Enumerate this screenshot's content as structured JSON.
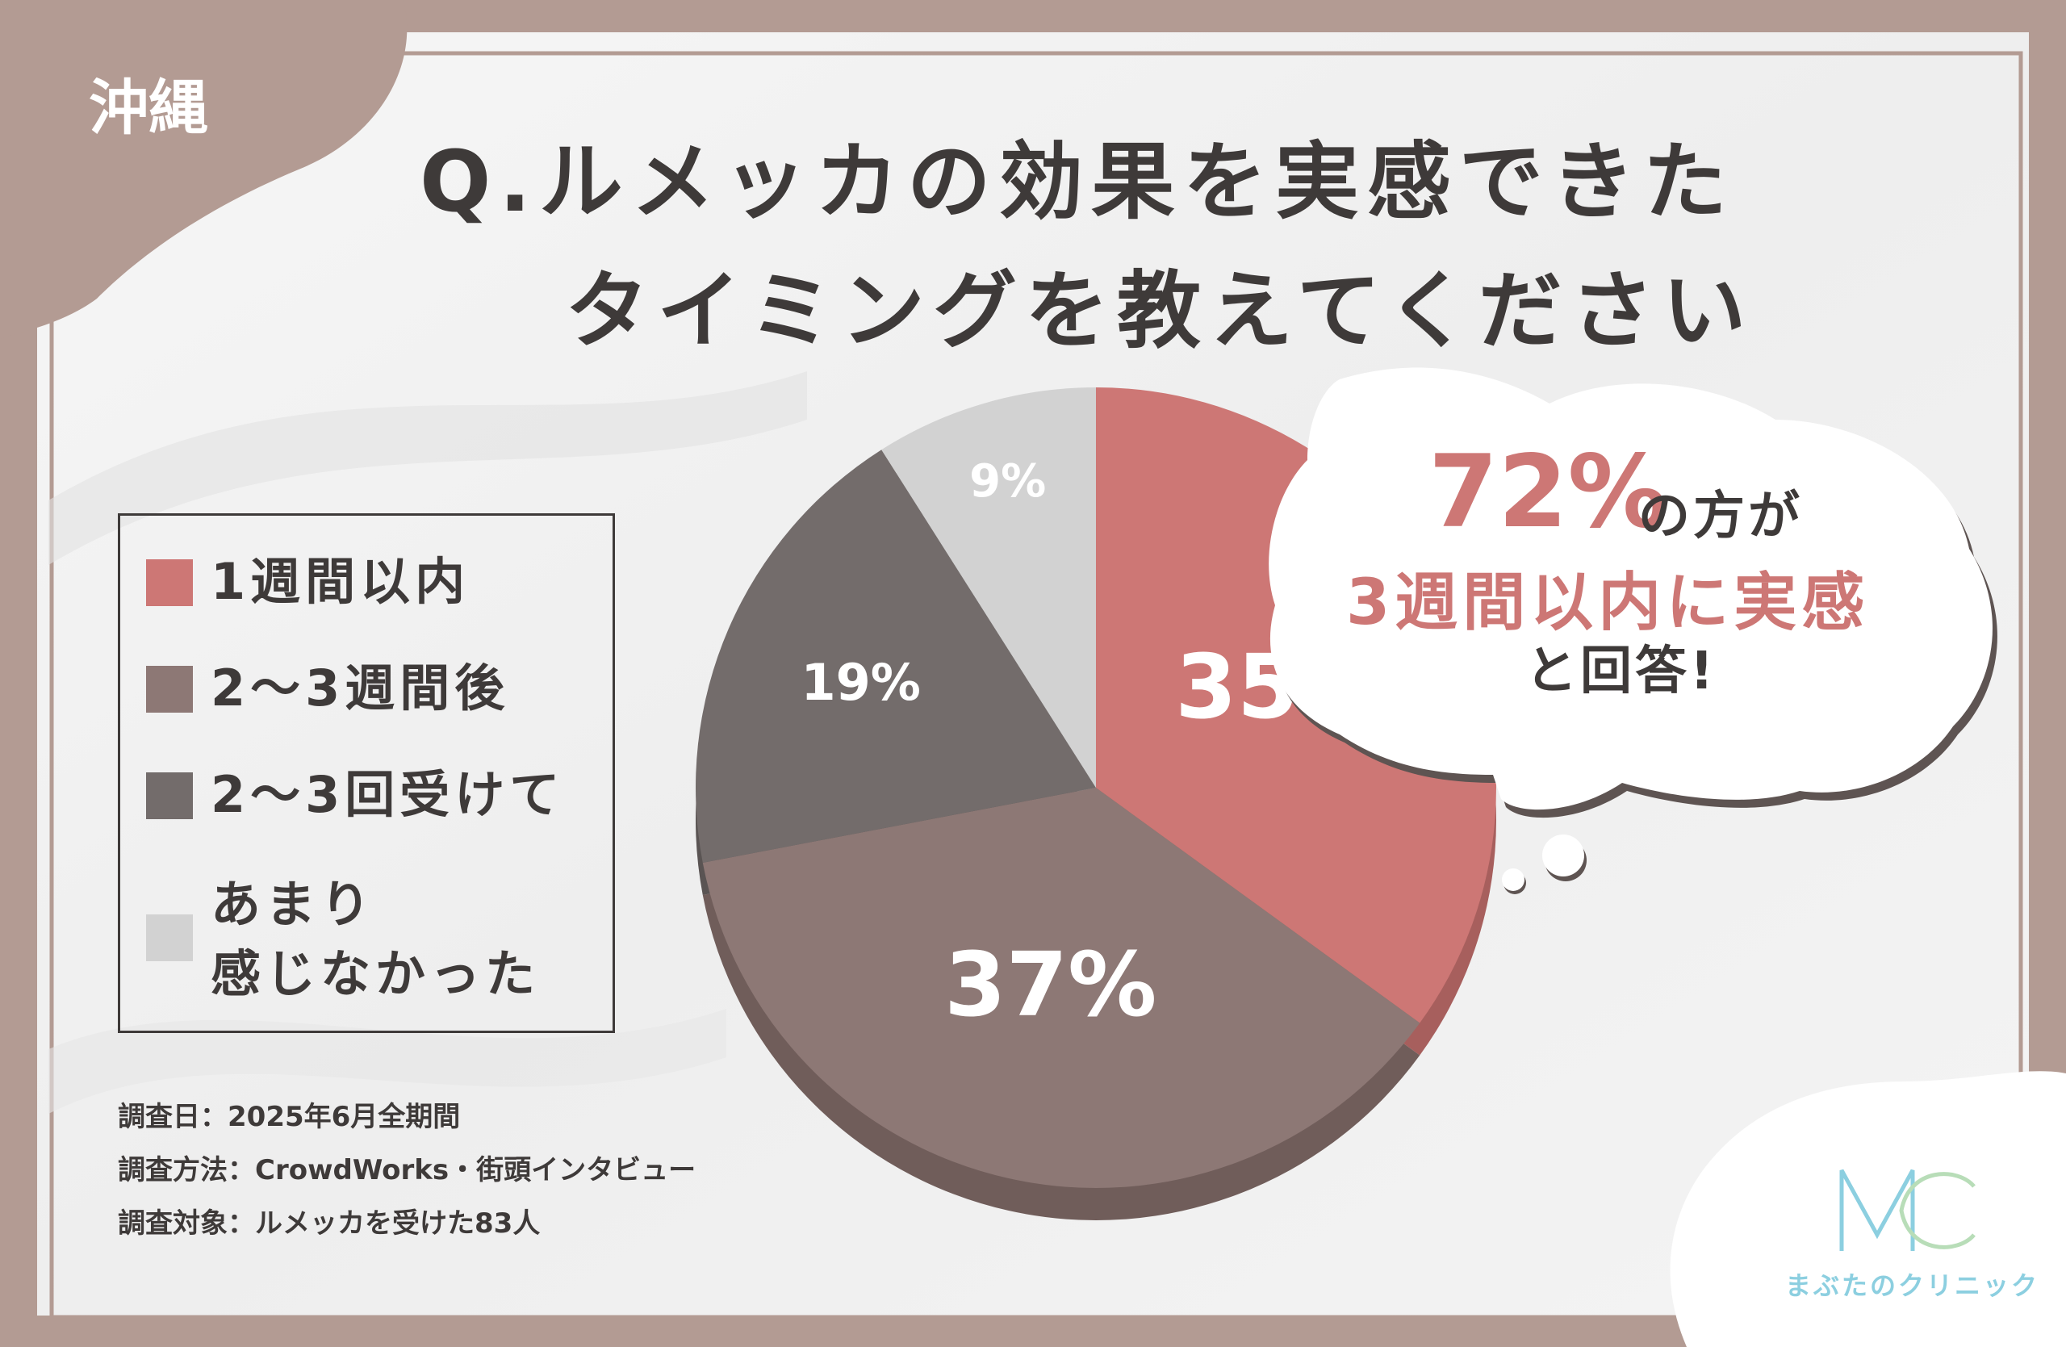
{
  "region_tag": "沖縄",
  "title": {
    "line1": "Q.ルメッカの効果を実感できた",
    "line2": "タイミングを教えてください"
  },
  "legend": [
    {
      "label": "1週間以内",
      "color": "#cd7775"
    },
    {
      "label": "2〜3週間後",
      "color": "#8d7875"
    },
    {
      "label": "2〜3回受けて",
      "color": "#736c6b"
    },
    {
      "label_line1": "あまり",
      "label_line2": "感じなかった",
      "color": "#d2d2d2"
    }
  ],
  "callout": {
    "big": "72%",
    "after_big": "の方が",
    "line2": "3週間以内に実感",
    "line3": "と回答!"
  },
  "notes": {
    "date": "調査日：2025年6月全期間",
    "method": "調査方法：CrowdWorks・街頭インタビュー",
    "target": "調査対象：ルメッカを受けた83人"
  },
  "logo": {
    "mark": "MC",
    "name": "まぶたのクリニック"
  },
  "colors": {
    "frame": "#b39b93",
    "accent": "#cd7775",
    "text": "#3e3a39"
  },
  "chart_data": {
    "type": "pie",
    "title": "Q.ルメッカの効果を実感できたタイミングを教えてください",
    "slices": [
      {
        "name": "1週間以内",
        "value": 35,
        "label": "35%",
        "color": "#cd7775",
        "shadow": "#a75f5d"
      },
      {
        "name": "2〜3週間後",
        "value": 37,
        "label": "37%",
        "color": "#8d7875",
        "shadow": "#705d5a"
      },
      {
        "name": "2〜3回受けて",
        "value": 19,
        "label": "19%",
        "color": "#736c6b",
        "shadow": "#5a5453"
      },
      {
        "name": "あまり感じなかった",
        "value": 9,
        "label": "9%",
        "color": "#d2d2d2",
        "shadow": "#b0b0b0"
      }
    ],
    "start": "12 o'clock, clockwise"
  }
}
